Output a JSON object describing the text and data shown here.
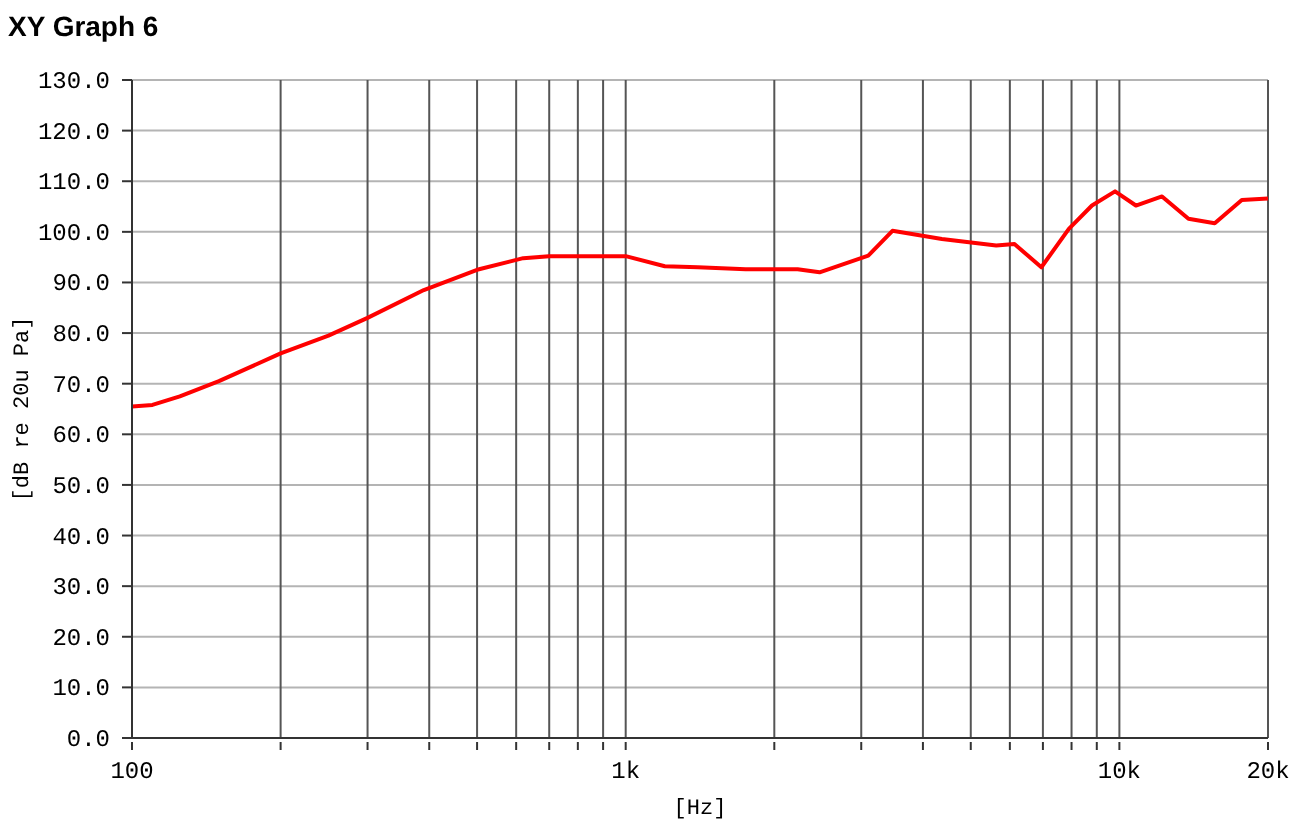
{
  "chart_data": {
    "type": "line",
    "title": "XY Graph 6",
    "xlabel": "[Hz]",
    "ylabel": "[dB re 20u Pa]",
    "log": "x",
    "grid": true,
    "legend": false,
    "marker": "none",
    "line_style": "solid",
    "x": [
      100,
      110,
      125,
      150,
      200,
      250,
      300,
      390,
      500,
      620,
      700,
      1000,
      1200,
      1400,
      1750,
      2230,
      2470,
      3100,
      3470,
      4370,
      5630,
      6130,
      6950,
      7900,
      8800,
      9800,
      10800,
      12200,
      13800,
      15600,
      17700,
      20000
    ],
    "series": [
      {
        "color": "#ff0000",
        "values": [
          65.5,
          65.8,
          67.5,
          70.5,
          76,
          79.5,
          83,
          88.5,
          92.5,
          94.8,
          95.2,
          95.2,
          93.2,
          93,
          92.6,
          92.6,
          92,
          95.3,
          100.2,
          98.6,
          97.3,
          97.6,
          93,
          100.6,
          105.2,
          108,
          105.2,
          107,
          102.6,
          101.7,
          106.3,
          106.6
        ]
      }
    ],
    "xlim": [
      100,
      20000
    ],
    "xticks": [
      100,
      {
        "value": 200,
        "label": null
      },
      {
        "value": 300,
        "label": null
      },
      {
        "value": 400,
        "label": null
      },
      {
        "value": 500,
        "label": null
      },
      {
        "value": 600,
        "label": null
      },
      {
        "value": 700,
        "label": null
      },
      {
        "value": 800,
        "label": null
      },
      {
        "value": 900,
        "label": null
      },
      {
        "value": 1000,
        "label": "1k"
      },
      {
        "value": 2000,
        "label": null
      },
      {
        "value": 3000,
        "label": null
      },
      {
        "value": 4000,
        "label": null
      },
      {
        "value": 5000,
        "label": null
      },
      {
        "value": 6000,
        "label": null
      },
      {
        "value": 7000,
        "label": null
      },
      {
        "value": 8000,
        "label": null
      },
      {
        "value": 9000,
        "label": null
      },
      {
        "value": 10000,
        "label": "10k"
      },
      {
        "value": 20000,
        "label": "20k"
      }
    ],
    "ylim": [
      0,
      130
    ],
    "yticks": [
      {
        "value": 0,
        "label": "0.0"
      },
      {
        "value": 10,
        "label": "10.0"
      },
      {
        "value": 20,
        "label": "20.0"
      },
      {
        "value": 30,
        "label": "30.0"
      },
      {
        "value": 40,
        "label": "40.0"
      },
      {
        "value": 50,
        "label": "50.0"
      },
      {
        "value": 60,
        "label": "60.0"
      },
      {
        "value": 70,
        "label": "70.0"
      },
      {
        "value": 80,
        "label": "80.0"
      },
      {
        "value": 90,
        "label": "90.0"
      },
      {
        "value": 100,
        "label": "100.0"
      },
      {
        "value": 110,
        "label": "110.0"
      },
      {
        "value": 120,
        "label": "120.0"
      },
      {
        "value": 130,
        "label": "130.0"
      }
    ]
  }
}
